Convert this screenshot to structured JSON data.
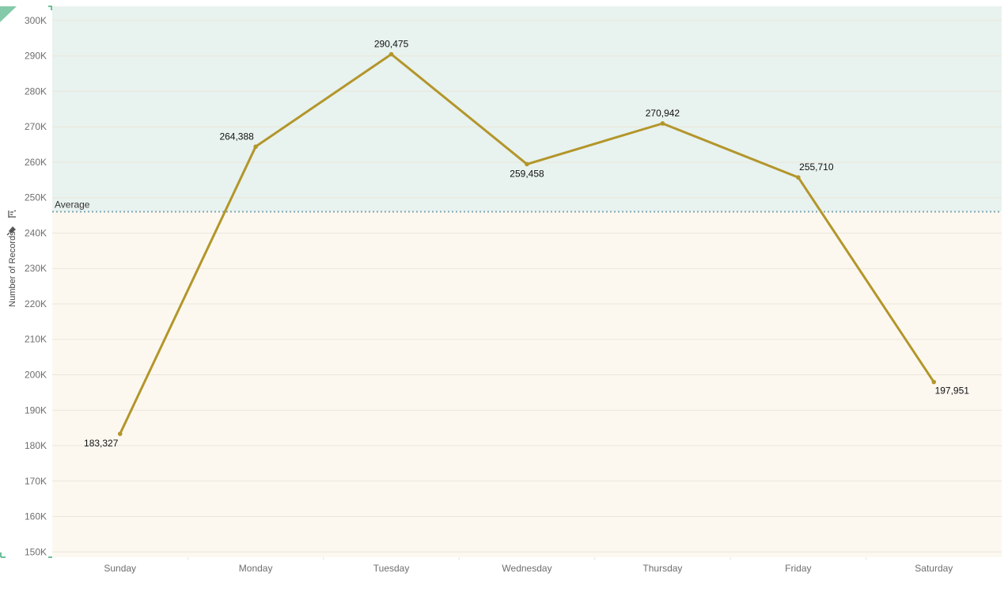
{
  "colors": {
    "upper_band": "#e8f2ef",
    "lower_band": "#fcf8f0",
    "line": "#b3962a",
    "average_line": "#7fa6b3",
    "gridline": "#ece6da",
    "corner_marker": "#6fbf9a"
  },
  "icons": [
    "sort-icon",
    "pin-icon"
  ],
  "chart_data": {
    "type": "line",
    "categories": [
      "Sunday",
      "Monday",
      "Tuesday",
      "Wednesday",
      "Thursday",
      "Friday",
      "Saturday"
    ],
    "values": [
      183327,
      264388,
      290475,
      259458,
      270942,
      255710,
      197951
    ],
    "data_labels": [
      "183,327",
      "264,388",
      "290,475",
      "259,458",
      "270,942",
      "255,710",
      "197,951"
    ],
    "title": "",
    "xlabel": "",
    "ylabel": "Number of Records",
    "ylim": [
      150000,
      300000
    ],
    "yticks": [
      150000,
      160000,
      170000,
      180000,
      190000,
      200000,
      210000,
      220000,
      230000,
      240000,
      250000,
      260000,
      270000,
      280000,
      290000,
      300000
    ],
    "ytick_labels": [
      "150K",
      "160K",
      "170K",
      "180K",
      "190K",
      "200K",
      "210K",
      "220K",
      "230K",
      "240K",
      "250K",
      "260K",
      "270K",
      "280K",
      "290K",
      "300K"
    ],
    "reference_line": {
      "label": "Average",
      "value": 246036,
      "style": "dotted"
    },
    "grid": true,
    "legend": "none"
  }
}
